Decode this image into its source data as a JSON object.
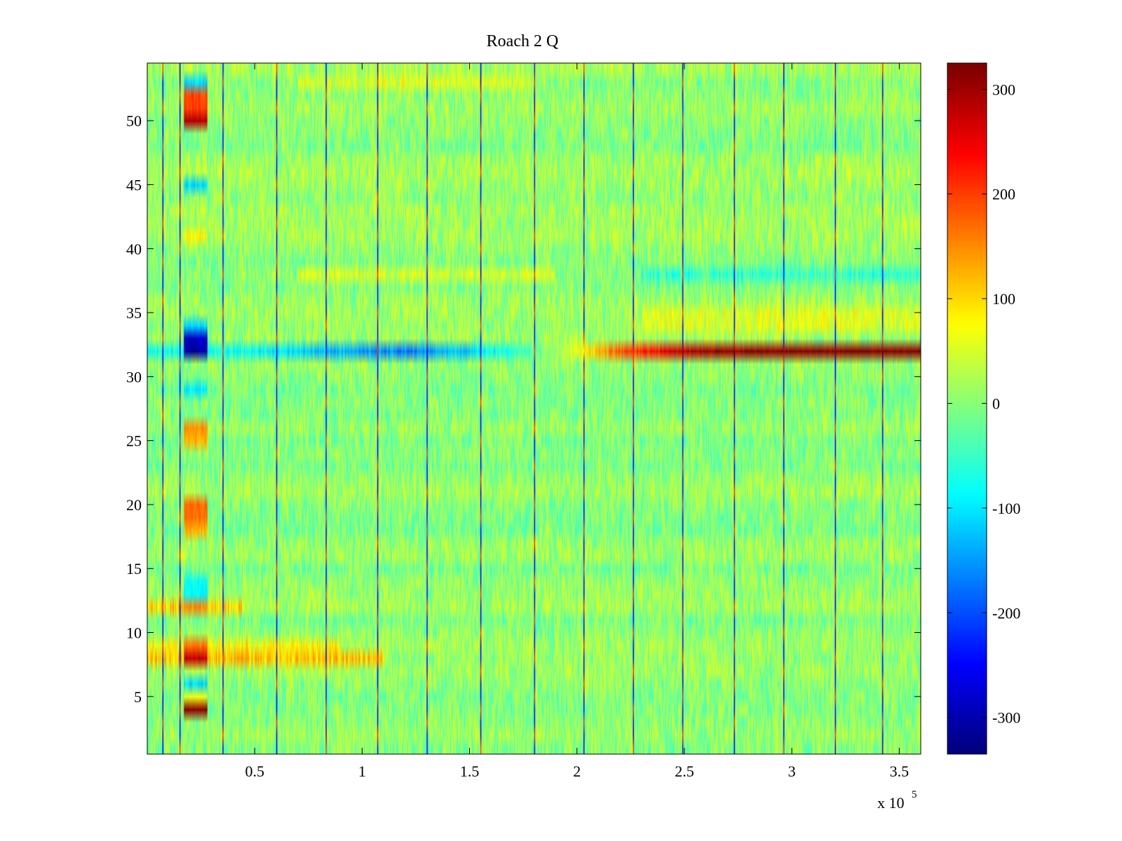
{
  "chart_data": {
    "type": "heatmap",
    "title": "Roach 2 Q",
    "xlabel": "",
    "ylabel": "",
    "x_multiplier_label": {
      "base": "x 10",
      "exponent": "5"
    },
    "xlim": [
      0,
      3.6
    ],
    "ylim": [
      0.5,
      54.5
    ],
    "x_ticks": [
      {
        "value": 0.5,
        "label": "0.5"
      },
      {
        "value": 1.0,
        "label": "1"
      },
      {
        "value": 1.5,
        "label": "1.5"
      },
      {
        "value": 2.0,
        "label": "2"
      },
      {
        "value": 2.5,
        "label": "2.5"
      },
      {
        "value": 3.0,
        "label": "3"
      },
      {
        "value": 3.5,
        "label": "3.5"
      }
    ],
    "y_ticks": [
      {
        "value": 5,
        "label": "5"
      },
      {
        "value": 10,
        "label": "10"
      },
      {
        "value": 15,
        "label": "15"
      },
      {
        "value": 20,
        "label": "20"
      },
      {
        "value": 25,
        "label": "25"
      },
      {
        "value": 30,
        "label": "30"
      },
      {
        "value": 35,
        "label": "35"
      },
      {
        "value": 40,
        "label": "40"
      },
      {
        "value": 45,
        "label": "45"
      },
      {
        "value": 50,
        "label": "50"
      }
    ],
    "colorbar": {
      "colormap": "jet",
      "range": [
        -335,
        325
      ],
      "ticks": [
        {
          "value": 300,
          "label": "300"
        },
        {
          "value": 200,
          "label": "200"
        },
        {
          "value": 100,
          "label": "100"
        },
        {
          "value": 0,
          "label": "0"
        },
        {
          "value": -100,
          "label": "-100"
        },
        {
          "value": -200,
          "label": "-200"
        },
        {
          "value": -300,
          "label": "-300"
        }
      ]
    },
    "rows": 54,
    "background_level": 5,
    "vertical_stripes_x": [
      0.07,
      0.15,
      0.35,
      0.6,
      0.83,
      1.07,
      1.3,
      1.55,
      1.8,
      2.03,
      2.26,
      2.49,
      2.73,
      2.96,
      3.2,
      3.42
    ],
    "row_offsets": [
      {
        "row": 8,
        "x_start": 0.0,
        "x_end": 1.1,
        "value": 110
      },
      {
        "row": 9,
        "x_start": 0.0,
        "x_end": 0.9,
        "value": 60
      },
      {
        "row": 12,
        "x_start": 0.0,
        "x_end": 0.45,
        "value": 90
      },
      {
        "row": 38,
        "x_start": 0.7,
        "x_end": 1.9,
        "value": 45
      },
      {
        "row": 38,
        "x_start": 2.3,
        "x_end": 3.6,
        "value": -60
      },
      {
        "row": 53,
        "x_start": 0.7,
        "x_end": 1.8,
        "value": 55
      },
      {
        "row": 34,
        "x_start": 2.3,
        "x_end": 3.6,
        "value": 45
      },
      {
        "row": 35,
        "x_start": 2.3,
        "x_end": 3.6,
        "value": 40
      }
    ],
    "row32_profile": [
      {
        "x": 0.0,
        "value": -80
      },
      {
        "x": 0.5,
        "value": -85
      },
      {
        "x": 0.9,
        "value": -140
      },
      {
        "x": 1.2,
        "value": -170
      },
      {
        "x": 1.5,
        "value": -120
      },
      {
        "x": 1.8,
        "value": -30
      },
      {
        "x": 2.0,
        "value": 60
      },
      {
        "x": 2.2,
        "value": 190
      },
      {
        "x": 2.45,
        "value": 270
      },
      {
        "x": 2.7,
        "value": 320
      },
      {
        "x": 3.6,
        "value": 330
      }
    ],
    "calibration_blocks": [
      {
        "row": 4,
        "value": 320
      },
      {
        "row": 5,
        "value": 60
      },
      {
        "row": 6,
        "value": -110
      },
      {
        "row": 8,
        "value": 280
      },
      {
        "row": 9,
        "value": 170
      },
      {
        "row": 12,
        "value": 150
      },
      {
        "row": 13,
        "value": -90
      },
      {
        "row": 14,
        "value": -80
      },
      {
        "row": 18,
        "value": 130
      },
      {
        "row": 19,
        "value": 170
      },
      {
        "row": 20,
        "value": 180
      },
      {
        "row": 25,
        "value": 130
      },
      {
        "row": 26,
        "value": 150
      },
      {
        "row": 29,
        "value": -100
      },
      {
        "row": 32,
        "value": -310
      },
      {
        "row": 33,
        "value": -290
      },
      {
        "row": 34,
        "value": -110
      },
      {
        "row": 41,
        "value": 80
      },
      {
        "row": 45,
        "value": -110
      },
      {
        "row": 50,
        "value": 290
      },
      {
        "row": 51,
        "value": 200
      },
      {
        "row": 52,
        "value": 200
      },
      {
        "row": 53,
        "value": -110
      }
    ],
    "calibration_block_x": [
      0.17,
      0.28
    ]
  }
}
